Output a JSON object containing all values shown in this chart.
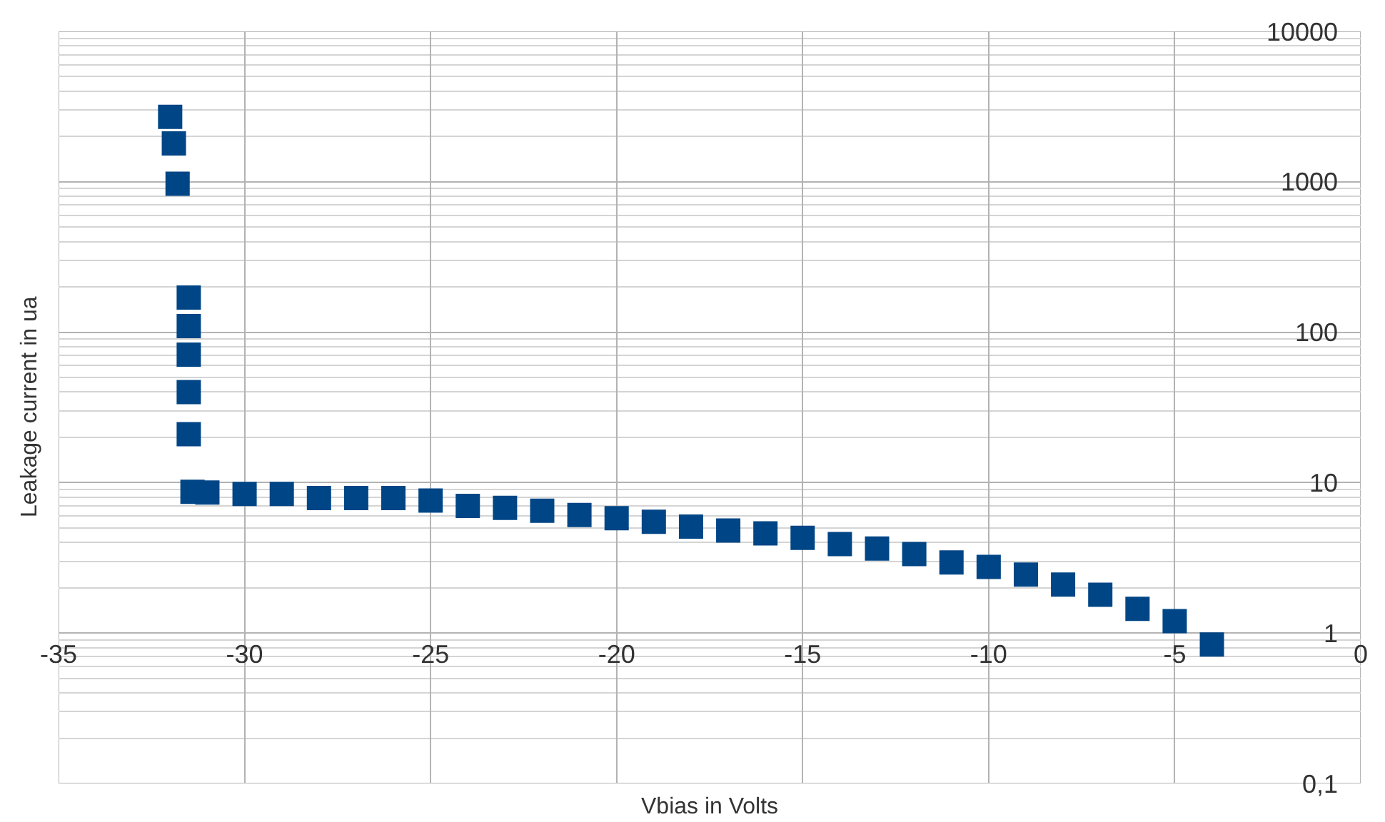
{
  "chart_data": {
    "type": "scatter",
    "xlabel": "Vbias in Volts",
    "ylabel": "Leakage current in ua",
    "x": [
      -32,
      -31.9,
      -31.8,
      -31.5,
      -31.5,
      -31.5,
      -31.5,
      -31.5,
      -31.4,
      -31,
      -30,
      -29,
      -28,
      -27,
      -26,
      -25,
      -24,
      -23,
      -22,
      -21,
      -20,
      -19,
      -18,
      -17,
      -16,
      -15,
      -14,
      -13,
      -12,
      -11,
      -10,
      -9,
      -8,
      -7,
      -6,
      -5,
      -4
    ],
    "series": [
      {
        "color": "#004586",
        "values": [
          2700,
          1800,
          970,
          170,
          110,
          71,
          40,
          21,
          8.7,
          8.6,
          8.4,
          8.4,
          7.9,
          7.9,
          7.9,
          7.6,
          7.0,
          6.8,
          6.5,
          6.1,
          5.8,
          5.5,
          5.1,
          4.8,
          4.6,
          4.3,
          3.9,
          3.65,
          3.35,
          2.95,
          2.75,
          2.45,
          2.1,
          1.8,
          1.45,
          1.2,
          0.84
        ]
      }
    ],
    "xlim": [
      -35,
      0
    ],
    "ylim": [
      0.1,
      10000
    ],
    "xticks": [
      -35,
      -30,
      -25,
      -20,
      -15,
      -10,
      -5,
      0
    ],
    "yticks": [
      {
        "value": 0.1,
        "label": "0,1"
      },
      1,
      10,
      100,
      1000,
      10000
    ],
    "log": "y",
    "grid": true,
    "marker": "square"
  }
}
